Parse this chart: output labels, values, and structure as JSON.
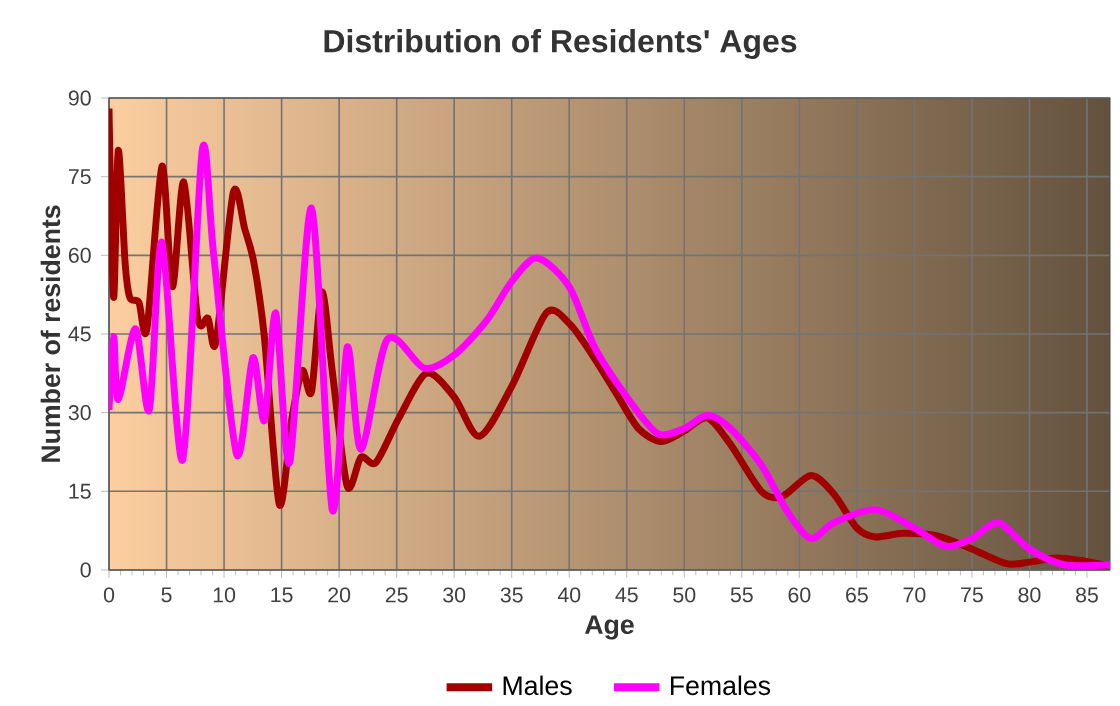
{
  "chart_data": {
    "type": "line",
    "title": "Distribution of Residents' Ages",
    "xlabel": "Age",
    "ylabel": "Number of residents",
    "xlim": [
      0,
      87
    ],
    "ylim": [
      0,
      90
    ],
    "xticks": [
      0,
      5,
      10,
      15,
      20,
      25,
      30,
      35,
      40,
      45,
      50,
      55,
      60,
      65,
      70,
      75,
      80,
      85
    ],
    "yticks": [
      0,
      15,
      30,
      45,
      60,
      75,
      90
    ],
    "grid": true,
    "legend": "bottom",
    "marker": "none",
    "line_style": "solid",
    "series": [
      {
        "name": "Males",
        "color": "#a00000",
        "x": [
          0,
          0.4,
          0.8,
          1.4,
          1.8,
          2.6,
          3.3,
          4.6,
          5.5,
          6.5,
          7.7,
          8.6,
          9.3,
          10.8,
          11.8,
          12.6,
          13.5,
          14.8,
          15.9,
          16.8,
          17.6,
          18.5,
          19.4,
          20.7,
          21.9,
          23.2,
          25.2,
          27.6,
          30,
          32.2,
          35,
          38,
          40,
          42,
          44,
          46,
          48,
          50,
          52,
          54,
          56.7,
          58.5,
          61,
          63,
          65,
          66.6,
          69,
          72,
          75,
          78,
          80,
          82.3,
          84.5,
          86.8
        ],
        "values": [
          88,
          52,
          80,
          58.5,
          52,
          51,
          46,
          77,
          54,
          74,
          48,
          48,
          43.5,
          72,
          65,
          58.5,
          44.5,
          12.5,
          29,
          38,
          34,
          53,
          38,
          16,
          21.5,
          20.5,
          29,
          37.5,
          33,
          25.5,
          35,
          49,
          47,
          41,
          34,
          27,
          24.5,
          26.5,
          29,
          24,
          15,
          14,
          18,
          14.5,
          8,
          6.3,
          7,
          6.5,
          4,
          1.2,
          1.5,
          2.3,
          1.8,
          0.8
        ]
      },
      {
        "name": "Females",
        "color": "#ff00ff",
        "x": [
          0,
          0.4,
          0.8,
          2.3,
          3.5,
          4.6,
          6.4,
          8.1,
          9.1,
          11.1,
          12.5,
          13.5,
          14.5,
          15.7,
          17.6,
          19.4,
          20.7,
          21.9,
          24.2,
          27.4,
          30,
          32.8,
          35,
          37.2,
          40,
          42.2,
          45,
          47.7,
          50,
          52,
          54,
          56.7,
          59,
          61,
          63,
          66.6,
          70,
          72.7,
          75,
          77.3,
          80,
          83,
          87
        ],
        "values": [
          30.5,
          44.5,
          32.5,
          46,
          30.5,
          62.5,
          21,
          80,
          60,
          22,
          40.5,
          28.5,
          49,
          20.5,
          69,
          11.5,
          42.5,
          23,
          44,
          38.5,
          41,
          47.5,
          55,
          59.5,
          54,
          42.5,
          33,
          26,
          27,
          29.5,
          27,
          20,
          11,
          6,
          9,
          11.5,
          8,
          4.5,
          6,
          9,
          4,
          1,
          1
        ]
      }
    ]
  }
}
